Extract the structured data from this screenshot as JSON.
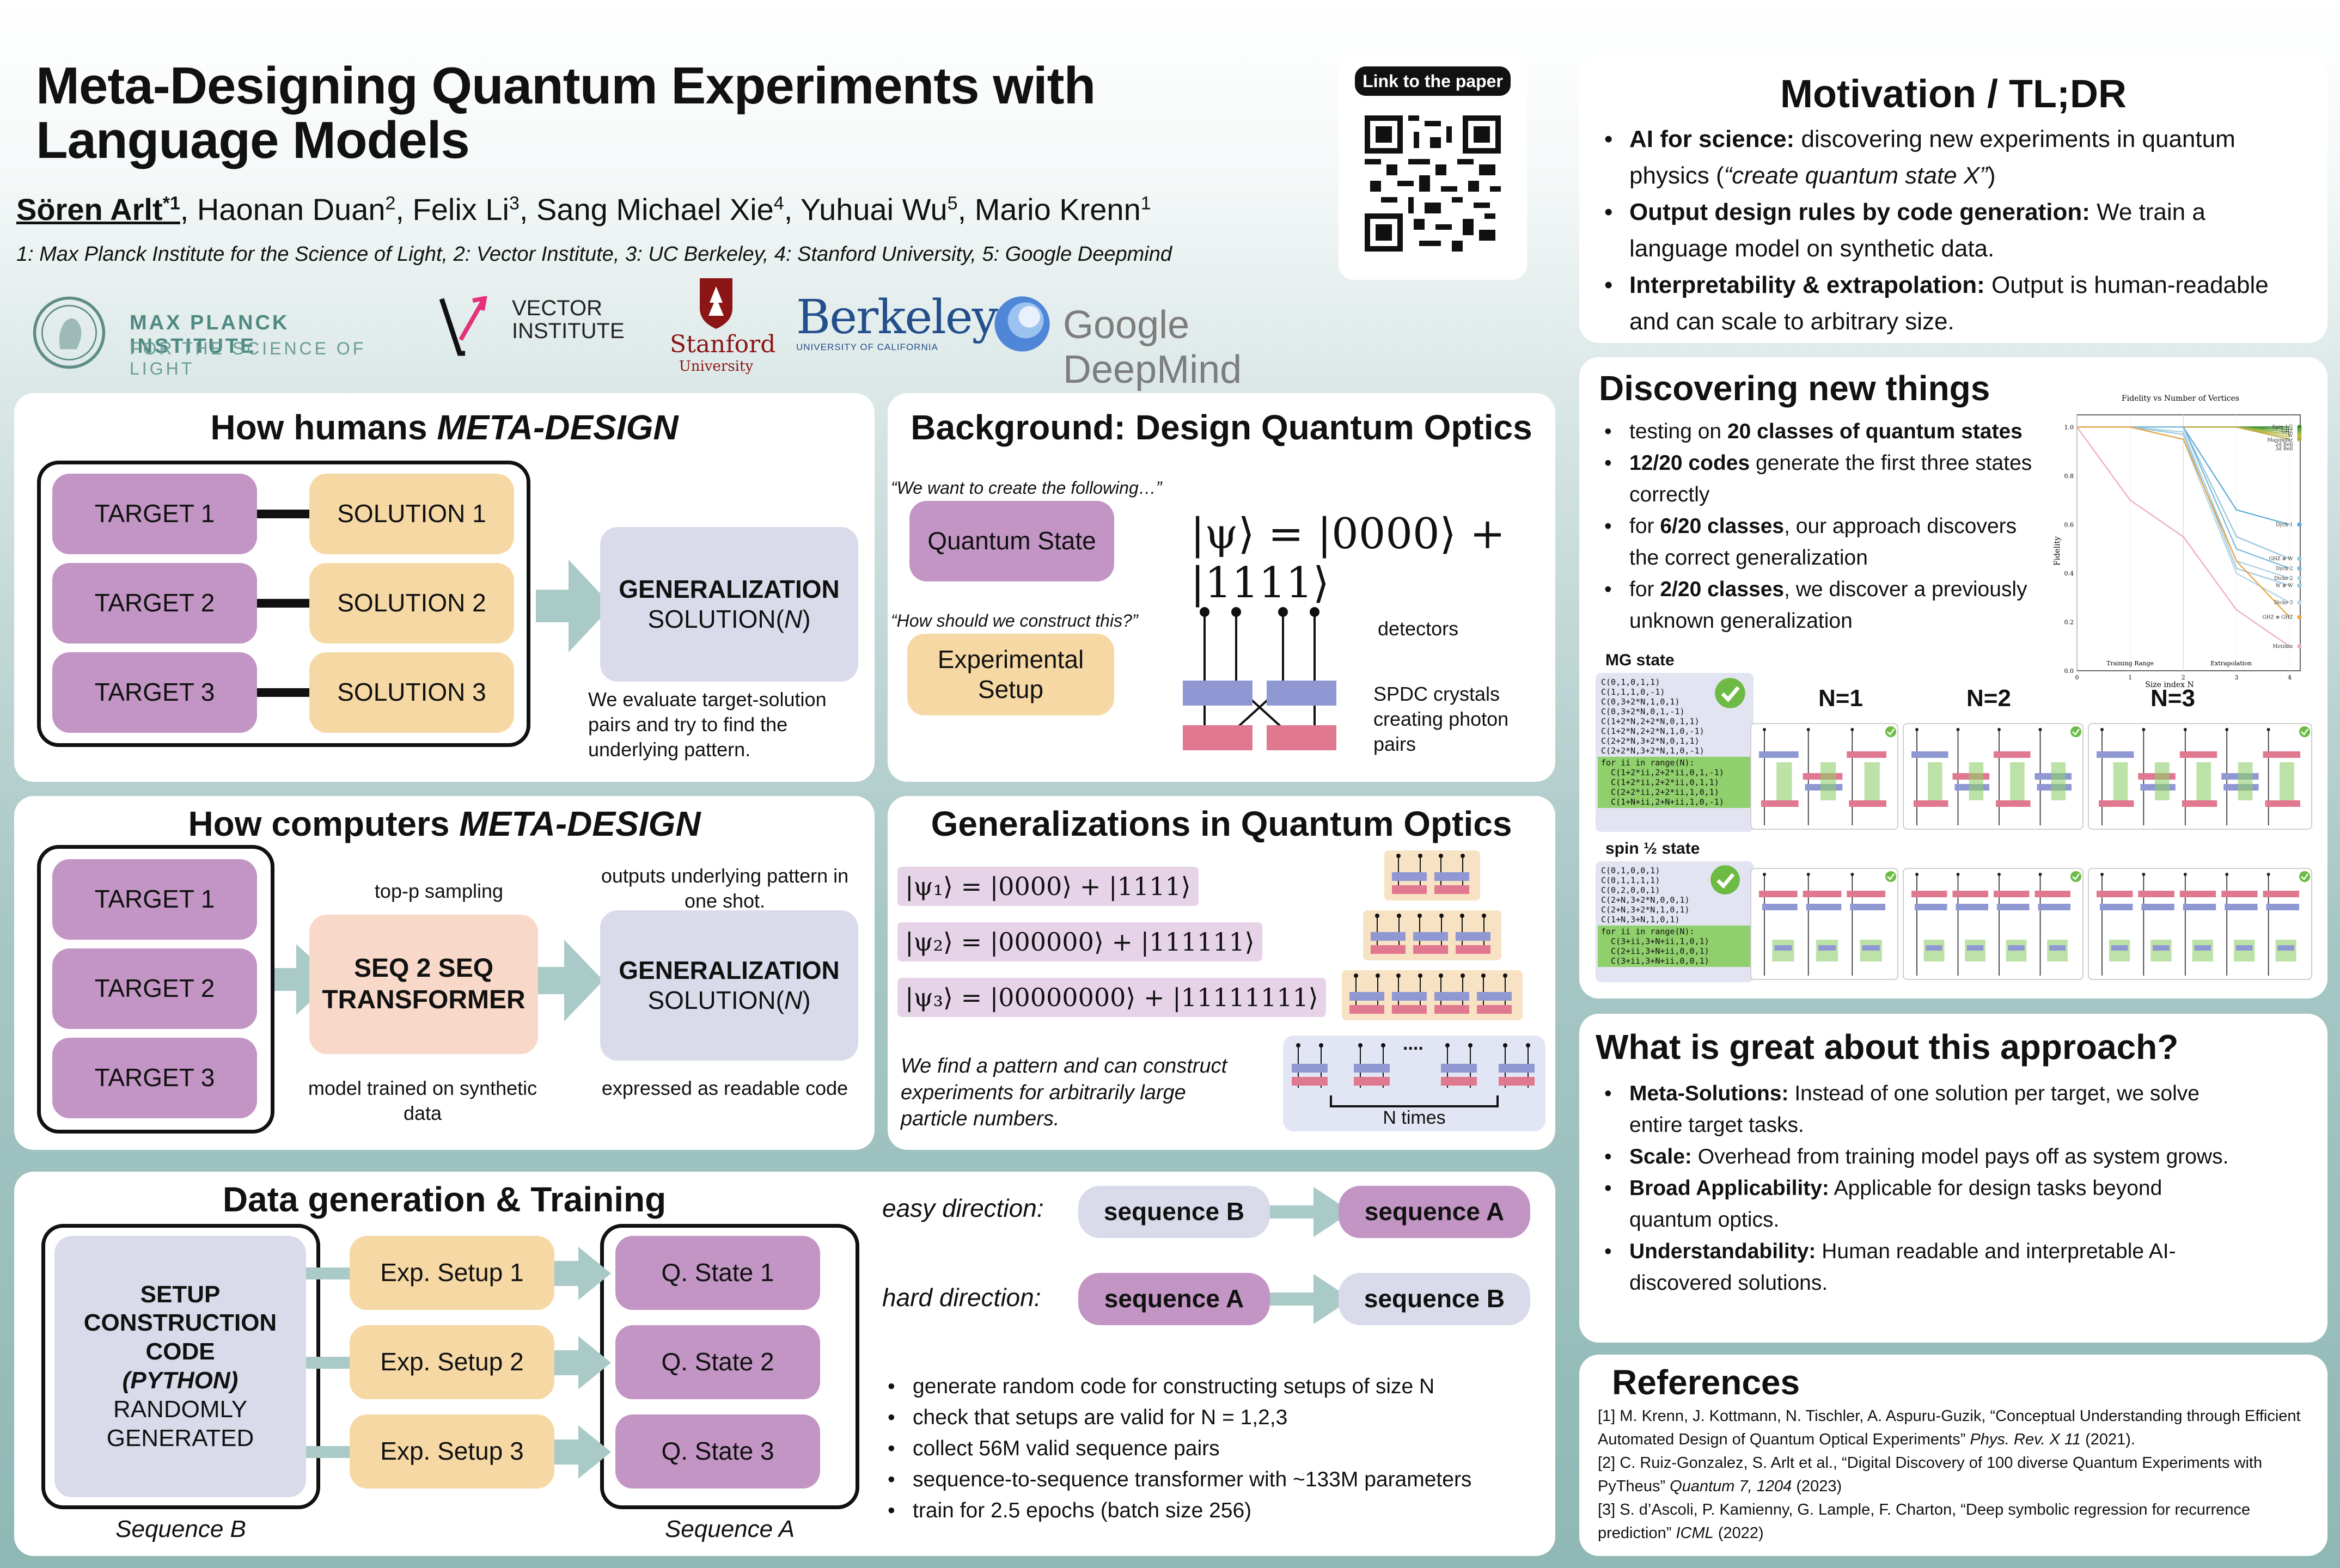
{
  "header": {
    "title": "Meta-Designing Quantum Experiments with Language Models",
    "authors": [
      {
        "name": "Sören Arlt",
        "sup": "*1"
      },
      {
        "name": "Haonan Duan",
        "sup": "2"
      },
      {
        "name": "Felix Li",
        "sup": "3"
      },
      {
        "name": "Sang Michael Xie",
        "sup": "4"
      },
      {
        "name": "Yuhuai Wu",
        "sup": "5"
      },
      {
        "name": "Mario Krenn",
        "sup": "1"
      }
    ],
    "affiliations": "1: Max Planck Institute for the Science of Light, 2: Vector Institute, 3: UC Berkeley, 4: Stanford University, 5: Google Deepmind",
    "qr_label": "Link to the paper"
  },
  "logos": {
    "mpi_line1": "MAX PLANCK INSTITUTE",
    "mpi_line2": "FOR THE SCIENCE OF LIGHT",
    "vector_line1": "VECTOR",
    "vector_line2": "INSTITUTE",
    "stanford": "Stanford",
    "stanford_sub": "University",
    "berkeley": "Berkeley",
    "berkeley_sub": "UNIVERSITY OF CALIFORNIA",
    "google": "Google DeepMind"
  },
  "humans": {
    "title_prefix": "How humans ",
    "title_em": "META-DESIGN",
    "targets": [
      "TARGET 1",
      "TARGET 2",
      "TARGET 3"
    ],
    "solutions": [
      "SOLUTION 1",
      "SOLUTION 2",
      "SOLUTION 3"
    ],
    "gen_title": "GENERALIZATION",
    "gen_sol": "SOLUTION(",
    "gen_n": "N",
    "gen_close": ")",
    "caption": "We evaluate target-solution pairs and try to find the underlying pattern."
  },
  "background": {
    "title": "Background: Design Quantum Optics",
    "q1": "“We want to create the following…”",
    "q2": "“How should we construct this?”",
    "state_box": "Quantum State",
    "setup_box": "Experimental Setup",
    "equation": "|ψ⟩ = |0000⟩ + |1111⟩",
    "detectors": "detectors",
    "spdc": "SPDC crystals creating photon pairs"
  },
  "computers": {
    "title_prefix": "How computers ",
    "title_em": "META-DESIGN",
    "targets": [
      "TARGET 1",
      "TARGET 2",
      "TARGET 3"
    ],
    "top_p": "top-p sampling",
    "transformer": "SEQ 2 SEQ TRANSFORMER",
    "trained": "model trained on synthetic data",
    "outputs": "outputs underlying pattern in one shot.",
    "gen_title": "GENERALIZATION",
    "gen_sol": "SOLUTION(",
    "gen_n": "N",
    "gen_close": ")",
    "readable": "expressed as readable code"
  },
  "generalizations": {
    "title": "Generalizations in Quantum Optics",
    "states": [
      "|ψ₁⟩ = |0000⟩ + |1111⟩",
      "|ψ₂⟩ = |000000⟩ + |111111⟩",
      "|ψ₃⟩ = |00000000⟩ + |11111111⟩"
    ],
    "caption": "We find a pattern and can construct experiments for arbitrarily large particle numbers.",
    "ntimes": "N times",
    "dots": "...."
  },
  "data": {
    "title": "Data generation & Training",
    "code_box": [
      "SETUP",
      "CONSTRUCTION",
      "CODE",
      "(PYTHON)",
      "RANDOMLY",
      "GENERATED"
    ],
    "setups": [
      "Exp. Setup 1",
      "Exp. Setup 2",
      "Exp. Setup 3"
    ],
    "states": [
      "Q. State 1",
      "Q. State 2",
      "Q. State 3"
    ],
    "seq_b": "Sequence B",
    "seq_a": "Sequence A",
    "easy": "easy direction:",
    "hard": "hard direction:",
    "sequence_a": "sequence A",
    "sequence_b": "sequence B",
    "bullets": [
      "generate random code for constructing setups of size N",
      "check that setups are valid for N = 1,2,3",
      "collect 56M valid sequence pairs",
      "sequence-to-sequence transformer with ~133M parameters",
      "train for 2.5 epochs (batch size 256)"
    ]
  },
  "motivation": {
    "title": "Motivation / TL;DR",
    "items": [
      {
        "bold": "AI for science:",
        "text": " discovering new experiments in quantum physics (",
        "italic": "“create quantum state X”",
        "tail": ")"
      },
      {
        "bold": "Output design rules by code generation:",
        "text": " We train a language model on synthetic data.",
        "italic": "",
        "tail": ""
      },
      {
        "bold": "Interpretability & extrapolation:",
        "text": " Output is human-readable and can scale to arbitrary size.",
        "italic": "",
        "tail": ""
      }
    ]
  },
  "discover": {
    "title": "Discovering new things",
    "items": [
      {
        "pre": "testing on ",
        "bold": "20 classes of quantum states",
        "post": ""
      },
      {
        "pre": "",
        "bold": "12/20 codes",
        "post": " generate the first three states correctly"
      },
      {
        "pre": "for ",
        "bold": "6/20 classes",
        "post": ", our approach discovers the correct generalization"
      },
      {
        "pre": "for ",
        "bold": "2/20 classes",
        "post": ", we discover a previously unknown generalization"
      }
    ],
    "mg_label": "MG state",
    "spin_label": "spin ½ state",
    "n_labels": [
      "N=1",
      "N=2",
      "N=3"
    ],
    "mg_code": [
      "C(0,1,0,1,1)",
      "C(1,1,1,0,-1)",
      "C(0,3+2*N,1,0,1)",
      "C(0,3+2*N,0,1,-1)",
      "C(1+2*N,2+2*N,0,1,1)",
      "C(1+2*N,2+2*N,1,0,-1)",
      "C(2+2*N,3+2*N,0,1,1)",
      "C(2+2*N,3+2*N,1,0,-1)"
    ],
    "mg_loop": [
      "for ii in range(N):",
      "  C(1+2*ii,2+2*ii,0,1,-1)",
      "  C(1+2*ii,2+2*ii,0,1,1)",
      "  C(2+2*ii,2+2*ii,1,0,1)",
      "  C(1+N+ii,2+N+ii,1,0,-1)"
    ],
    "spin_code": [
      "C(0,1,0,0,1)",
      "C(0,1,1,1,1)",
      "C(0,2,0,0,1)",
      "C(2+N,3+2*N,0,0,1)",
      "C(2+N,3+2*N,1,0,1)",
      "C(1+N,3+N,1,0,1)"
    ],
    "spin_loop": [
      "for ii in range(N):",
      "  C(3+ii,3+N+ii,1,0,1)",
      "  C(2+ii,3+N+ii,0,0,1)",
      "  C(3+ii,3+N+ii,0,0,1)"
    ]
  },
  "chart_data": {
    "type": "line",
    "title": "Fidelity vs Number of Vertices",
    "xlabel": "Size index N",
    "ylabel": "Fidelity",
    "x": [
      0,
      1,
      2,
      3,
      4
    ],
    "xlim": [
      0,
      4.2
    ],
    "ylim": [
      0,
      1.05
    ],
    "xticks": [
      "0",
      "1",
      "2",
      "3",
      "4"
    ],
    "yticks": [
      "0.0",
      "0.2",
      "0.4",
      "0.6",
      "0.8",
      "1.0"
    ],
    "region_labels": [
      "Training Range",
      "Extrapolation"
    ],
    "series": [
      {
        "name": "Spin 1/2",
        "color": "#2a8a2a",
        "values": [
          1,
          1,
          1,
          1,
          1
        ]
      },
      {
        "name": "GHZ",
        "color": "#5a9e3a",
        "values": [
          1,
          1,
          1,
          1,
          0.99
        ]
      },
      {
        "name": "W",
        "color": "#7aaa4a",
        "values": [
          1,
          1,
          1,
          1,
          0.98
        ]
      },
      {
        "name": "Majumdar",
        "color": "#a0b94a",
        "values": [
          1,
          1,
          1,
          1,
          0.97
        ]
      },
      {
        "name": "2d Bell",
        "color": "#c9b640",
        "values": [
          1,
          1,
          1,
          1,
          0.96
        ]
      },
      {
        "name": "3d Bell",
        "color": "#b7a845",
        "values": [
          1,
          1,
          1,
          1,
          0.95
        ]
      },
      {
        "name": "Dyck 1",
        "color": "#5aa9d6",
        "values": [
          1,
          1,
          1,
          0.66,
          0.6
        ]
      },
      {
        "name": "GHZ ⊗ W",
        "color": "#8fc3dd",
        "values": [
          1,
          1,
          1,
          0.55,
          0.46
        ]
      },
      {
        "name": "Dyck 2",
        "color": "#7ab6d8",
        "values": [
          1,
          1,
          1,
          0.5,
          0.42
        ]
      },
      {
        "name": "Dicke 2",
        "color": "#a6cfe3",
        "values": [
          1,
          1,
          0.98,
          0.45,
          0.38
        ]
      },
      {
        "name": "W ⊗ W",
        "color": "#9bc7de",
        "values": [
          1,
          1,
          0.97,
          0.42,
          0.35
        ]
      },
      {
        "name": "Dicke 3",
        "color": "#b0d4e6",
        "values": [
          1,
          1,
          0.95,
          0.4,
          0.28
        ]
      },
      {
        "name": "GHZ ⊗ GHZ",
        "color": "#e8a23a",
        "values": [
          1,
          1,
          0.95,
          0.45,
          0.22
        ]
      },
      {
        "name": "Motzkin",
        "color": "#f0a8b6",
        "values": [
          1,
          0.7,
          0.55,
          0.25,
          0.1
        ]
      }
    ]
  },
  "great": {
    "title": "What is great about this approach?",
    "items": [
      {
        "bold": "Meta-Solutions:",
        "text": " Instead of one solution per target, we solve entire target tasks."
      },
      {
        "bold": "Scale:",
        "text": " Overhead from training model pays off as system grows."
      },
      {
        "bold": "Broad Applicability:",
        "text": " Applicable for design tasks beyond quantum optics."
      },
      {
        "bold": "Understandability:",
        "text": " Human readable and interpretable AI-discovered solutions."
      }
    ]
  },
  "references": {
    "title": "References",
    "items": [
      {
        "text": "[1] M. Krenn, J. Kottmann, N. Tischler, A. Aspuru-Guzik, “Conceptual Understanding through Efficient Automated Design of Quantum Optical Experiments” ",
        "italic": "Phys. Rev. X 11",
        "tail": " (2021)."
      },
      {
        "text": "[2] C. Ruiz-Gonzalez, S. Arlt et al., “Digital Discovery of 100 diverse Quantum Experiments with PyTheus” ",
        "italic": "Quantum 7, 1204",
        "tail": " (2023)"
      },
      {
        "text": "[3] S. d’Ascoli, P. Kamienny, G. Lample, F. Charton, “Deep symbolic regression for recurrence prediction” ",
        "italic": "ICML",
        "tail": " (2022)"
      }
    ]
  },
  "colors": {
    "purple": "#c295c4",
    "orange": "#f6d8a4",
    "lavender": "#d9dbeb",
    "peach": "#f8d9c9",
    "arrow": "#a9cac7",
    "check": "#6dbb45"
  }
}
